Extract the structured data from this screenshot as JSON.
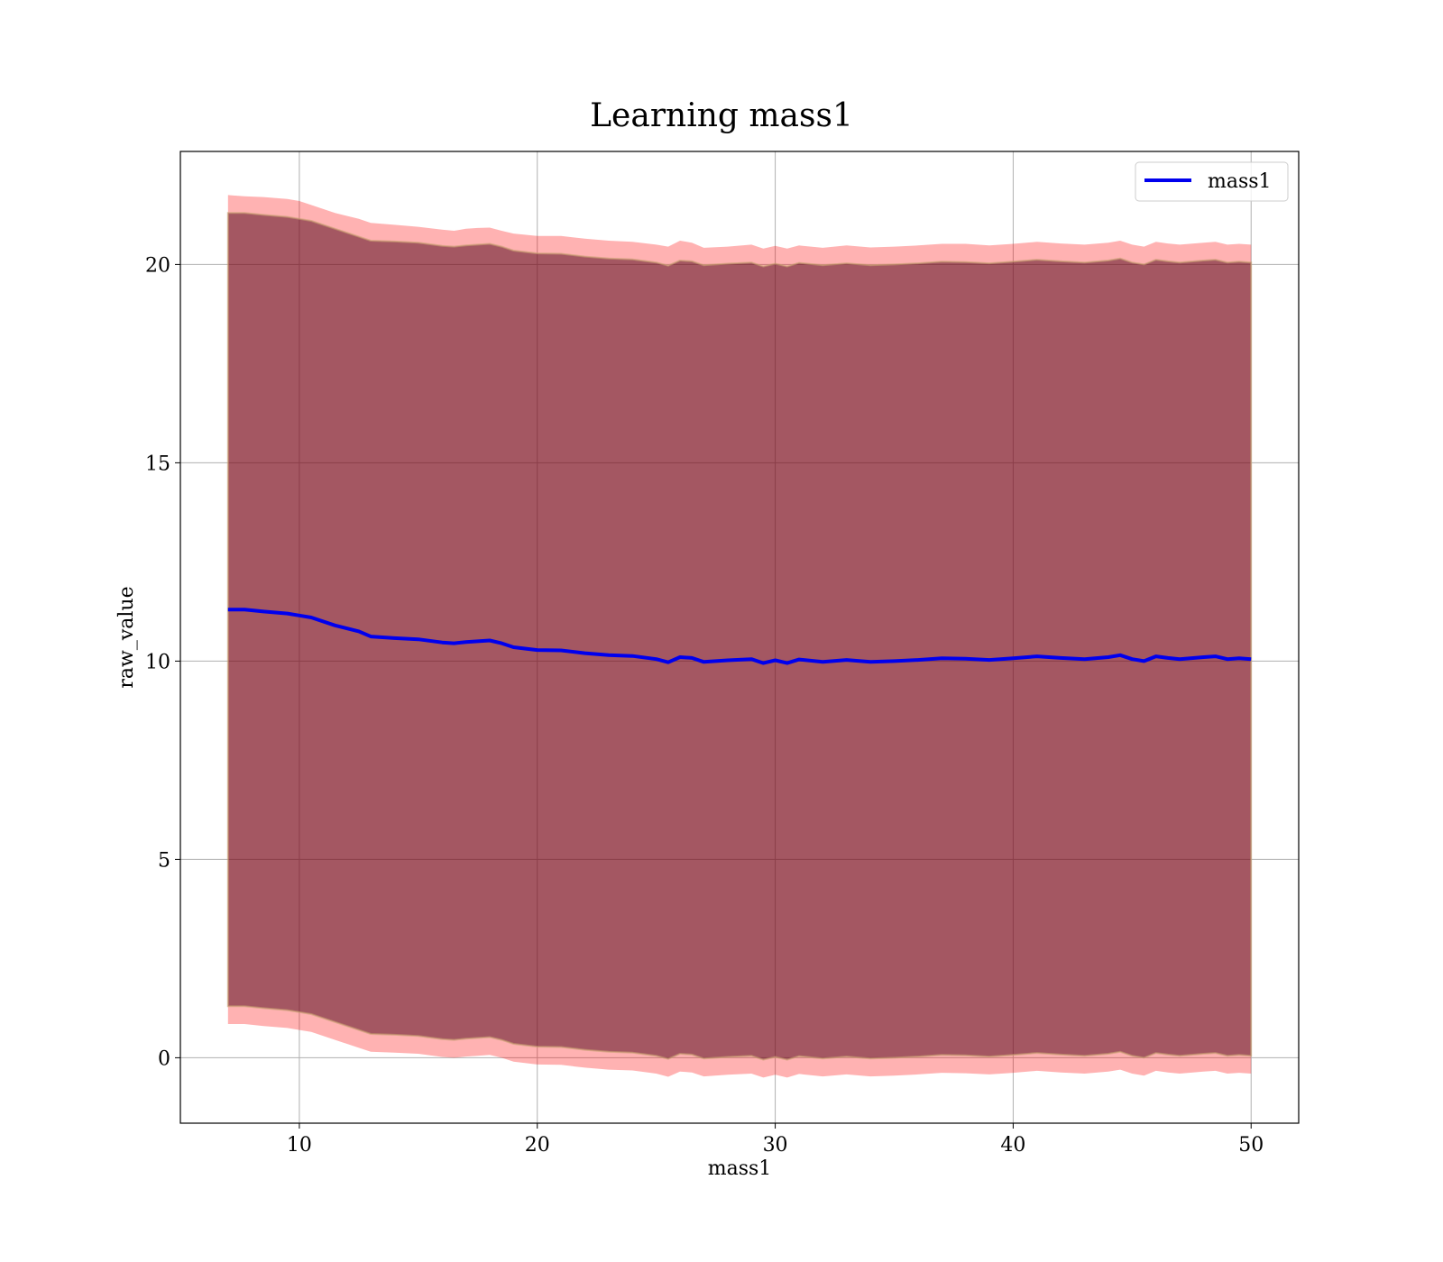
{
  "chart_data": {
    "type": "line",
    "title": "Learning mass1",
    "xlabel": "mass1",
    "ylabel": "raw_value",
    "xlim": [
      5,
      52
    ],
    "ylim": [
      -1.65,
      22.85
    ],
    "xticks": [
      10,
      20,
      30,
      40,
      50
    ],
    "yticks": [
      0,
      5,
      10,
      15,
      20
    ],
    "grid": true,
    "legend": {
      "position": "top-right",
      "entries": [
        "mass1"
      ]
    },
    "colors": {
      "line": "#0000ee",
      "outer_band": "#ff0000",
      "inner_band": "#5a0c20",
      "grid": "#b0b0b0"
    },
    "series": [
      {
        "name": "mass1",
        "x": [
          7.0,
          7.7,
          8.5,
          9.5,
          10.0,
          10.5,
          11.5,
          12.5,
          13.0,
          14.0,
          15.0,
          16.0,
          16.5,
          17.0,
          17.5,
          18.0,
          18.5,
          19.0,
          20.0,
          21.0,
          22.0,
          23.0,
          24.0,
          25.0,
          25.5,
          26.0,
          26.5,
          27.0,
          28.0,
          29.0,
          29.5,
          30.0,
          30.5,
          31.0,
          32.0,
          33.0,
          34.0,
          35.0,
          36.0,
          37.0,
          38.0,
          39.0,
          40.0,
          41.0,
          42.0,
          43.0,
          44.0,
          44.5,
          45.0,
          45.5,
          46.0,
          46.5,
          47.0,
          48.0,
          48.5,
          49.0,
          49.5,
          50.0
        ],
        "y": [
          11.3,
          11.3,
          11.25,
          11.2,
          11.15,
          11.1,
          10.9,
          10.75,
          10.62,
          10.58,
          10.55,
          10.47,
          10.45,
          10.48,
          10.5,
          10.52,
          10.45,
          10.35,
          10.28,
          10.27,
          10.2,
          10.15,
          10.13,
          10.05,
          9.97,
          10.1,
          10.08,
          9.98,
          10.02,
          10.05,
          9.95,
          10.02,
          9.95,
          10.04,
          9.98,
          10.03,
          9.98,
          10.0,
          10.03,
          10.07,
          10.06,
          10.03,
          10.07,
          10.12,
          10.08,
          10.05,
          10.1,
          10.15,
          10.05,
          10.0,
          10.12,
          10.08,
          10.05,
          10.1,
          10.12,
          10.05,
          10.07,
          10.05
        ],
        "band_outer_upper": [
          21.75,
          21.72,
          21.7,
          21.65,
          21.6,
          21.5,
          21.3,
          21.15,
          21.05,
          21.0,
          20.95,
          20.88,
          20.85,
          20.9,
          20.92,
          20.93,
          20.85,
          20.78,
          20.72,
          20.72,
          20.65,
          20.6,
          20.57,
          20.5,
          20.45,
          20.6,
          20.55,
          20.42,
          20.45,
          20.5,
          20.4,
          20.47,
          20.4,
          20.48,
          20.42,
          20.48,
          20.43,
          20.45,
          20.48,
          20.52,
          20.52,
          20.48,
          20.52,
          20.57,
          20.53,
          20.5,
          20.55,
          20.6,
          20.5,
          20.45,
          20.57,
          20.53,
          20.5,
          20.55,
          20.57,
          20.5,
          20.52,
          20.5
        ],
        "band_inner_upper": [
          21.3,
          21.3,
          21.25,
          21.2,
          21.15,
          21.1,
          20.9,
          20.7,
          20.6,
          20.58,
          20.55,
          20.47,
          20.45,
          20.48,
          20.5,
          20.52,
          20.45,
          20.35,
          20.28,
          20.27,
          20.2,
          20.15,
          20.13,
          20.05,
          19.97,
          20.1,
          20.08,
          19.98,
          20.02,
          20.05,
          19.95,
          20.02,
          19.95,
          20.04,
          19.98,
          20.03,
          19.98,
          20.0,
          20.03,
          20.07,
          20.06,
          20.03,
          20.07,
          20.12,
          20.08,
          20.05,
          20.1,
          20.15,
          20.05,
          20.0,
          20.12,
          20.08,
          20.05,
          20.1,
          20.12,
          20.05,
          20.07,
          20.05
        ],
        "band_inner_lower": [
          1.3,
          1.3,
          1.25,
          1.2,
          1.15,
          1.1,
          0.9,
          0.7,
          0.6,
          0.58,
          0.55,
          0.47,
          0.45,
          0.48,
          0.5,
          0.52,
          0.45,
          0.35,
          0.28,
          0.27,
          0.2,
          0.15,
          0.13,
          0.05,
          -0.03,
          0.1,
          0.08,
          -0.02,
          0.02,
          0.05,
          -0.05,
          0.02,
          -0.05,
          0.04,
          -0.02,
          0.03,
          -0.02,
          0.0,
          0.03,
          0.07,
          0.06,
          0.03,
          0.07,
          0.12,
          0.08,
          0.05,
          0.1,
          0.15,
          0.05,
          0.0,
          0.12,
          0.08,
          0.05,
          0.1,
          0.12,
          0.05,
          0.07,
          0.05
        ],
        "band_outer_lower": [
          0.85,
          0.85,
          0.8,
          0.75,
          0.7,
          0.65,
          0.45,
          0.25,
          0.15,
          0.13,
          0.1,
          0.02,
          0.0,
          0.03,
          0.05,
          0.07,
          0.0,
          -0.1,
          -0.17,
          -0.18,
          -0.25,
          -0.3,
          -0.32,
          -0.4,
          -0.48,
          -0.35,
          -0.37,
          -0.47,
          -0.43,
          -0.4,
          -0.5,
          -0.43,
          -0.5,
          -0.41,
          -0.47,
          -0.42,
          -0.47,
          -0.45,
          -0.42,
          -0.38,
          -0.39,
          -0.42,
          -0.38,
          -0.33,
          -0.37,
          -0.4,
          -0.35,
          -0.3,
          -0.4,
          -0.45,
          -0.33,
          -0.37,
          -0.4,
          -0.35,
          -0.33,
          -0.4,
          -0.38,
          -0.4
        ]
      }
    ]
  }
}
